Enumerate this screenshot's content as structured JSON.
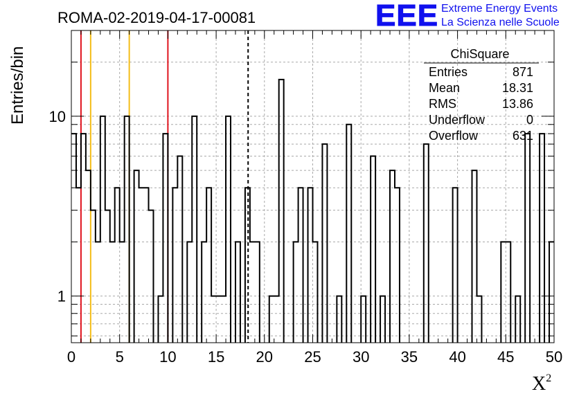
{
  "chart_data": {
    "type": "histogram",
    "title": "ROMA-02-2019-04-17-00081",
    "xlabel": "X",
    "xlabel_superscript": "2",
    "ylabel": "Entries/bin",
    "xlim": [
      0,
      50
    ],
    "ylim": [
      0.55,
      30
    ],
    "yscale": "log",
    "grid": true,
    "bin_width": 0.5,
    "x_ticks": [
      "0",
      "5",
      "10",
      "15",
      "20",
      "25",
      "30",
      "35",
      "40",
      "45",
      "50"
    ],
    "y_ticks": [
      "1",
      "10"
    ],
    "bins": [
      [
        0.0,
        8
      ],
      [
        0.5,
        4
      ],
      [
        1.0,
        8
      ],
      [
        1.5,
        5
      ],
      [
        2.0,
        3
      ],
      [
        2.5,
        2
      ],
      [
        3.0,
        10
      ],
      [
        3.5,
        3
      ],
      [
        4.0,
        2
      ],
      [
        4.5,
        4
      ],
      [
        5.0,
        2
      ],
      [
        5.5,
        10
      ],
      [
        6.0,
        0
      ],
      [
        6.5,
        5
      ],
      [
        7.0,
        4
      ],
      [
        7.5,
        4
      ],
      [
        8.0,
        3
      ],
      [
        8.5,
        0
      ],
      [
        9.0,
        1
      ],
      [
        9.5,
        8
      ],
      [
        10.0,
        0
      ],
      [
        10.5,
        4
      ],
      [
        11.0,
        6
      ],
      [
        11.5,
        0
      ],
      [
        12.0,
        2
      ],
      [
        12.5,
        10
      ],
      [
        13.0,
        0
      ],
      [
        13.5,
        2
      ],
      [
        14.0,
        4
      ],
      [
        14.5,
        1
      ],
      [
        15.0,
        1
      ],
      [
        15.5,
        1
      ],
      [
        16.0,
        10
      ],
      [
        16.5,
        0
      ],
      [
        17.0,
        2
      ],
      [
        17.5,
        0
      ],
      [
        18.0,
        4
      ],
      [
        18.5,
        2
      ],
      [
        19.0,
        2
      ],
      [
        19.5,
        0
      ],
      [
        20.0,
        0
      ],
      [
        20.5,
        1
      ],
      [
        21.0,
        1
      ],
      [
        21.5,
        16
      ],
      [
        22.0,
        0
      ],
      [
        22.5,
        0
      ],
      [
        23.0,
        2
      ],
      [
        23.5,
        4
      ],
      [
        24.0,
        0
      ],
      [
        24.5,
        4
      ],
      [
        25.0,
        2
      ],
      [
        25.5,
        0
      ],
      [
        26.0,
        7
      ],
      [
        26.5,
        0
      ],
      [
        27.0,
        0
      ],
      [
        27.5,
        1
      ],
      [
        28.0,
        0
      ],
      [
        28.5,
        9
      ],
      [
        29.0,
        0
      ],
      [
        29.5,
        0
      ],
      [
        30.0,
        1
      ],
      [
        30.5,
        0
      ],
      [
        31.0,
        6
      ],
      [
        31.5,
        0
      ],
      [
        32.0,
        1
      ],
      [
        32.5,
        0
      ],
      [
        33.0,
        5
      ],
      [
        33.5,
        4
      ],
      [
        34.0,
        0
      ],
      [
        34.5,
        0
      ],
      [
        35.0,
        0
      ],
      [
        35.5,
        0
      ],
      [
        36.0,
        0
      ],
      [
        36.5,
        7
      ],
      [
        37.0,
        0
      ],
      [
        37.5,
        0
      ],
      [
        38.0,
        0
      ],
      [
        38.5,
        0
      ],
      [
        39.0,
        0
      ],
      [
        39.5,
        4
      ],
      [
        40.0,
        0
      ],
      [
        40.5,
        0
      ],
      [
        41.0,
        0
      ],
      [
        41.5,
        5
      ],
      [
        42.0,
        1
      ],
      [
        42.5,
        0
      ],
      [
        43.0,
        0
      ],
      [
        43.5,
        0
      ],
      [
        44.0,
        0
      ],
      [
        44.5,
        2
      ],
      [
        45.0,
        2
      ],
      [
        45.5,
        0
      ],
      [
        46.0,
        1
      ],
      [
        46.5,
        0
      ],
      [
        47.0,
        8
      ],
      [
        47.5,
        0
      ],
      [
        48.0,
        0
      ],
      [
        48.5,
        8
      ],
      [
        49.0,
        0
      ],
      [
        49.5,
        2
      ]
    ],
    "vertical_lines": [
      {
        "x": 1.0,
        "color": "#e0141e",
        "style": "solid"
      },
      {
        "x": 2.0,
        "color": "#f4bd19",
        "style": "solid"
      },
      {
        "x": 6.0,
        "color": "#f4bd19",
        "style": "solid"
      },
      {
        "x": 10.0,
        "color": "#e0141e",
        "style": "solid"
      },
      {
        "x": 18.31,
        "color": "#000000",
        "style": "dashed"
      }
    ],
    "stats": {
      "title": "ChiSquare",
      "rows": [
        {
          "label": "Entries",
          "value": "871"
        },
        {
          "label": "Mean",
          "value": "18.31"
        },
        {
          "label": "RMS",
          "value": "13.86"
        },
        {
          "label": "Underflow",
          "value": "0"
        },
        {
          "label": "Overflow",
          "value": "631"
        }
      ]
    }
  },
  "logo": {
    "mark": "EEE",
    "line1": "Extreme Energy Events",
    "line2": "La Scienza nelle Scuole"
  }
}
